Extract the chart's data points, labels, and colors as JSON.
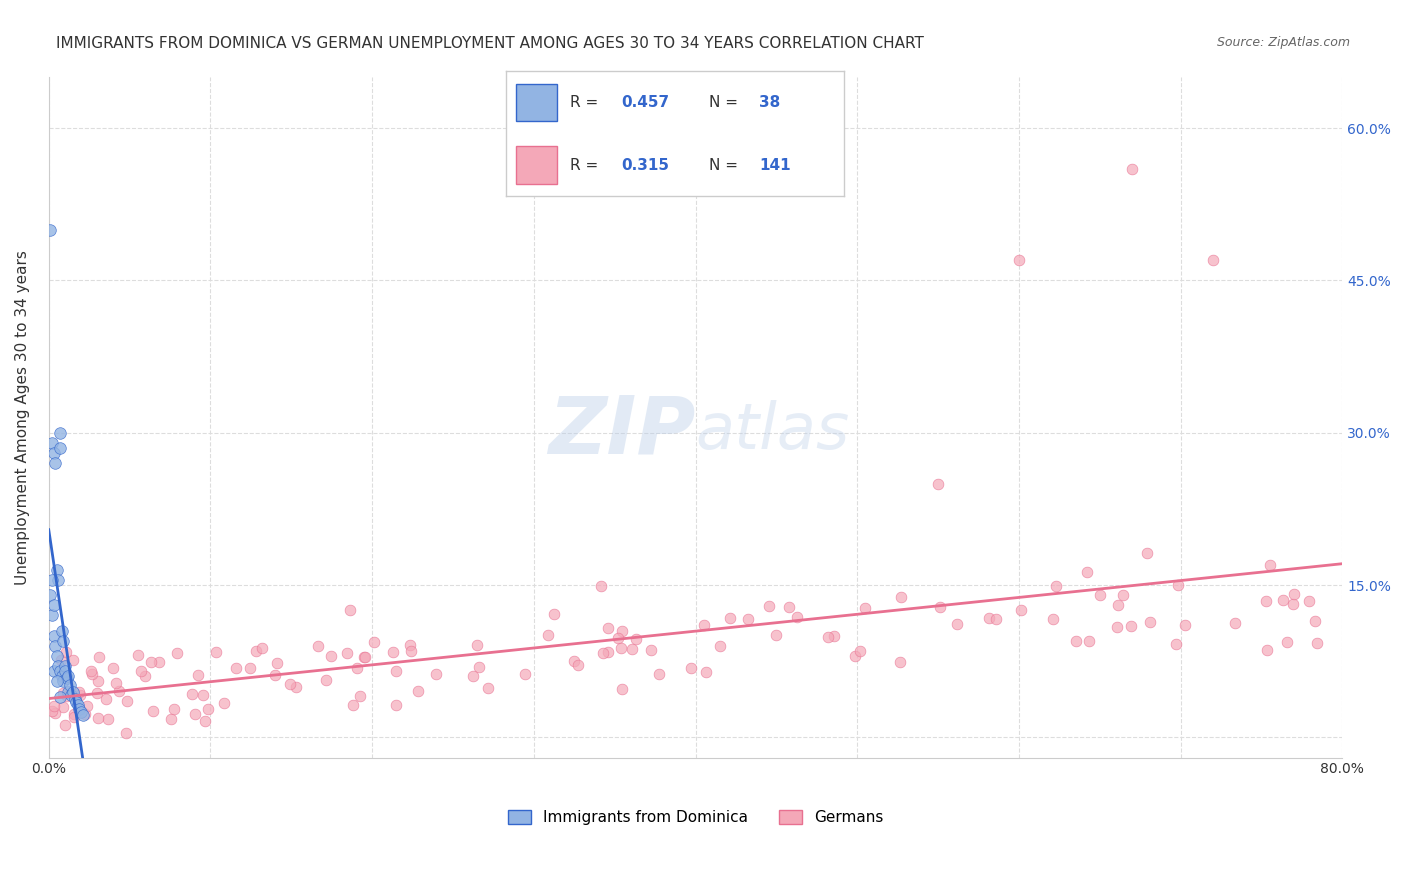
{
  "title": "IMMIGRANTS FROM DOMINICA VS GERMAN UNEMPLOYMENT AMONG AGES 30 TO 34 YEARS CORRELATION CHART",
  "source": "Source: ZipAtlas.com",
  "ylabel": "Unemployment Among Ages 30 to 34 years",
  "xlim": [
    0,
    0.8
  ],
  "ylim": [
    -0.02,
    0.65
  ],
  "legend_blue_r": "0.457",
  "legend_blue_n": "38",
  "legend_pink_r": "0.315",
  "legend_pink_n": "141",
  "blue_color": "#92b4e3",
  "pink_color": "#f4a8b8",
  "blue_line_color": "#3366cc",
  "pink_line_color": "#e87090",
  "grid_color": "#dddddd",
  "background_color": "#ffffff",
  "title_fontsize": 11,
  "source_fontsize": 9,
  "axis_label_fontsize": 11,
  "tick_fontsize": 10,
  "legend_fontsize": 12
}
